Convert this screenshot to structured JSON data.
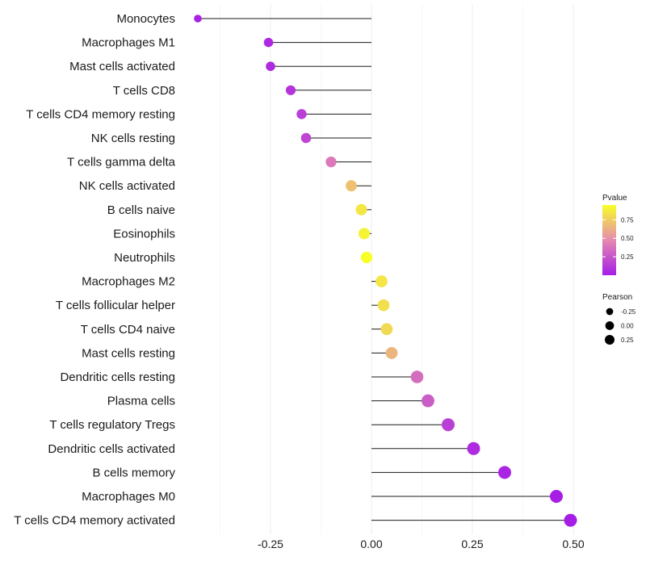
{
  "chart_data": {
    "type": "lollipop",
    "title": "",
    "xlabel": "",
    "ylabel": "",
    "xlim": [
      -0.43,
      0.5
    ],
    "xticks": [
      "-0.25",
      "0.00",
      "0.25",
      "0.50"
    ],
    "xtick_values": [
      -0.25,
      0,
      0.25,
      0.5
    ],
    "grid": true,
    "categories": [
      "Monocytes",
      "Macrophages M1",
      "Mast cells activated",
      "T cells CD8",
      "T cells CD4 memory resting",
      "NK cells resting",
      "T cells gamma delta",
      "NK cells activated",
      "B cells naive",
      "Eosinophils",
      "Neutrophils",
      "Macrophages M2",
      "T cells follicular helper",
      "T cells CD4 naive",
      "Mast cells resting",
      "Dendritic cells resting",
      "Plasma cells",
      "T cells regulatory  Tregs",
      "Dendritic cells activated",
      "B cells memory",
      "Macrophages M0",
      "T cells CD4 memory activated"
    ],
    "pearson": [
      -0.43,
      -0.255,
      -0.25,
      -0.2,
      -0.173,
      -0.162,
      -0.1,
      -0.05,
      -0.025,
      -0.018,
      -0.012,
      0.025,
      0.03,
      0.038,
      0.05,
      0.113,
      0.14,
      0.19,
      0.253,
      0.33,
      0.458,
      0.493
    ],
    "pvalue": [
      0.02,
      0.05,
      0.06,
      0.1,
      0.15,
      0.18,
      0.4,
      0.7,
      0.85,
      0.9,
      0.95,
      0.85,
      0.82,
      0.8,
      0.65,
      0.35,
      0.28,
      0.15,
      0.06,
      0.03,
      0.005,
      0.001
    ],
    "legend": {
      "pvalue": {
        "title": "Pvalue",
        "ticks": [
          "0.75",
          "0.50",
          "0.25"
        ],
        "tick_values": [
          0.75,
          0.5,
          0.25
        ],
        "range": [
          0.0,
          0.95
        ],
        "colors": [
          "#a61de6",
          "#f7ff28"
        ]
      },
      "pearson": {
        "title": "Pearson",
        "entries": [
          "-0.25",
          "0.00",
          "0.25"
        ],
        "entry_values": [
          -0.25,
          0,
          0.25
        ]
      },
      "placement": "right"
    }
  }
}
